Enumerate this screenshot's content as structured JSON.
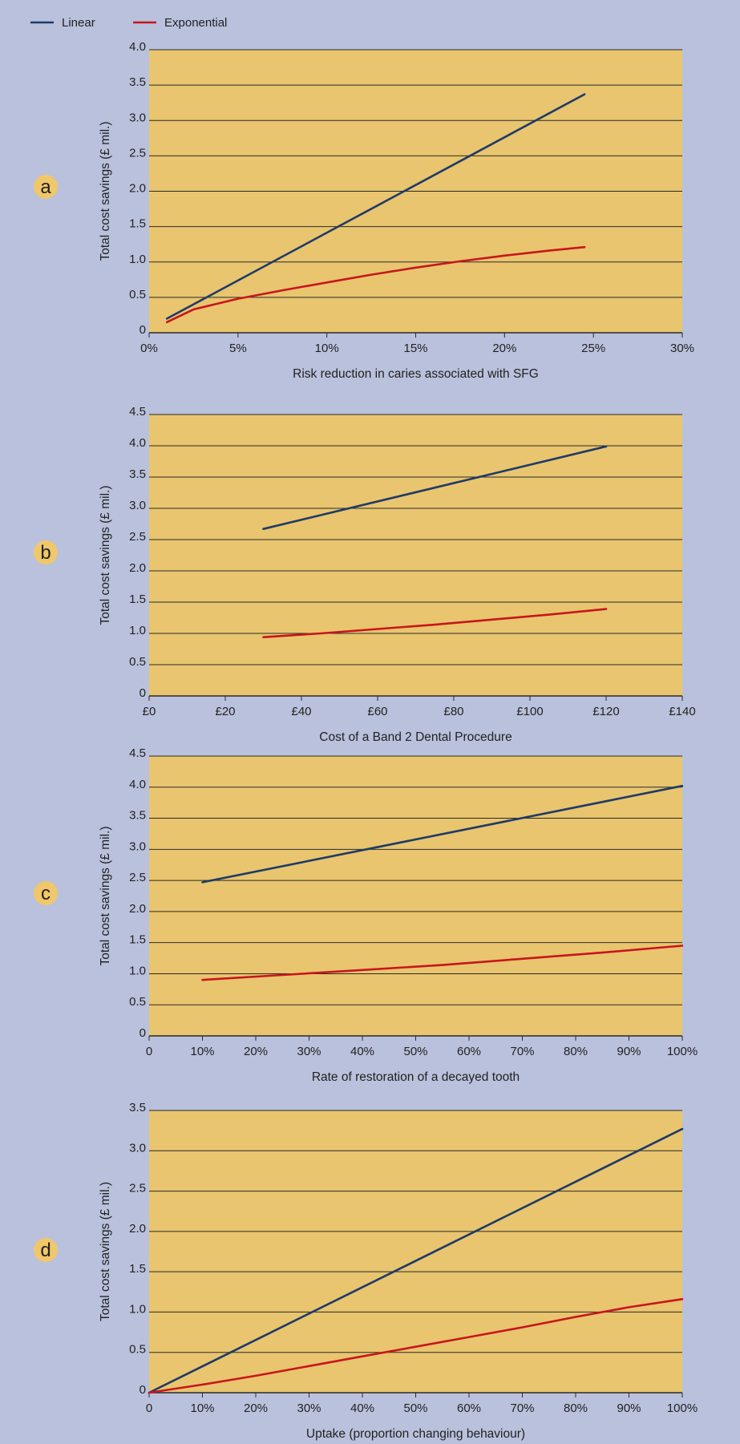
{
  "legend": {
    "placement": "top-left",
    "entries": [
      {
        "label": "Linear",
        "color": "#1f3a68"
      },
      {
        "label": "Exponential",
        "color": "#c8161d"
      }
    ]
  },
  "colors": {
    "background": "#b9c1dc",
    "plot_area": "#e8c56e",
    "grid": "#2a2a2a",
    "badge": "#f0c76a"
  },
  "chart_data": [
    {
      "type": "line",
      "panel": "a",
      "ylabel": "Total cost savings (£ mil.)",
      "xlabel": "Risk reduction in caries associated with SFG",
      "xlim": [
        0,
        30
      ],
      "ylim": [
        0,
        4.0
      ],
      "xticks": [
        0,
        5,
        10,
        15,
        20,
        25,
        30
      ],
      "xtick_labels": [
        "0%",
        "5%",
        "10%",
        "15%",
        "20%",
        "25%",
        "30%"
      ],
      "yticks": [
        0,
        0.5,
        1.0,
        1.5,
        2.0,
        2.5,
        3.0,
        3.5,
        4.0
      ],
      "ytick_labels": [
        "0",
        "0.5",
        "1.0",
        "1.5",
        "2.0",
        "2.5",
        "3.0",
        "3.5",
        "4.0"
      ],
      "grid": true,
      "series": [
        {
          "name": "Linear",
          "x": [
            1,
            24.5
          ],
          "y": [
            0.2,
            3.37
          ]
        },
        {
          "name": "Exponential",
          "x": [
            1,
            2.5,
            5,
            7.5,
            10,
            12.5,
            15,
            17.5,
            20,
            22.5,
            24.5
          ],
          "y": [
            0.15,
            0.33,
            0.48,
            0.6,
            0.71,
            0.82,
            0.92,
            1.01,
            1.09,
            1.16,
            1.21
          ]
        }
      ]
    },
    {
      "type": "line",
      "panel": "b",
      "ylabel": "Total cost savings (£ mil.)",
      "xlabel": "Cost of a Band 2 Dental Procedure",
      "xlim": [
        0,
        140
      ],
      "ylim": [
        0,
        4.5
      ],
      "xticks": [
        0,
        20,
        40,
        60,
        80,
        100,
        120,
        140
      ],
      "xtick_labels": [
        "£0",
        "£20",
        "£40",
        "£60",
        "£80",
        "£100",
        "£120",
        "£140"
      ],
      "yticks": [
        0,
        0.5,
        1.0,
        1.5,
        2.0,
        2.5,
        3.0,
        3.5,
        4.0,
        4.5
      ],
      "ytick_labels": [
        "0",
        "0.5",
        "1.0",
        "1.5",
        "2.0",
        "2.5",
        "3.0",
        "3.5",
        "4.0",
        "4.5"
      ],
      "grid": true,
      "series": [
        {
          "name": "Linear",
          "x": [
            30,
            120
          ],
          "y": [
            2.67,
            3.99
          ]
        },
        {
          "name": "Exponential",
          "x": [
            30,
            45,
            60,
            75,
            90,
            105,
            120
          ],
          "y": [
            0.94,
            1.0,
            1.07,
            1.14,
            1.22,
            1.3,
            1.39
          ]
        }
      ]
    },
    {
      "type": "line",
      "panel": "c",
      "ylabel": "Total cost savings (£ mil.)",
      "xlabel": "Rate of restoration of a decayed tooth",
      "xlim": [
        0,
        100
      ],
      "ylim": [
        0,
        4.5
      ],
      "xticks": [
        0,
        10,
        20,
        30,
        40,
        50,
        60,
        70,
        80,
        90,
        100
      ],
      "xtick_labels": [
        "0",
        "10%",
        "20%",
        "30%",
        "40%",
        "50%",
        "60%",
        "70%",
        "80%",
        "90%",
        "100%"
      ],
      "yticks": [
        0,
        0.5,
        1.0,
        1.5,
        2.0,
        2.5,
        3.0,
        3.5,
        4.0,
        4.5
      ],
      "ytick_labels": [
        "0",
        "0.5",
        "1.0",
        "1.5",
        "2.0",
        "2.5",
        "3.0",
        "3.5",
        "4.0",
        "4.5"
      ],
      "grid": true,
      "series": [
        {
          "name": "Linear",
          "x": [
            10,
            100
          ],
          "y": [
            2.47,
            4.02
          ]
        },
        {
          "name": "Exponential",
          "x": [
            10,
            25,
            40,
            55,
            70,
            85,
            100
          ],
          "y": [
            0.9,
            0.98,
            1.06,
            1.14,
            1.24,
            1.34,
            1.45
          ]
        }
      ]
    },
    {
      "type": "line",
      "panel": "d",
      "ylabel": "Total cost savings (£ mil.)",
      "xlabel": "Uptake (proportion changing behaviour)",
      "xlim": [
        0,
        100
      ],
      "ylim": [
        0,
        3.5
      ],
      "xticks": [
        0,
        10,
        20,
        30,
        40,
        50,
        60,
        70,
        80,
        90,
        100
      ],
      "xtick_labels": [
        "0",
        "10%",
        "20%",
        "30%",
        "40%",
        "50%",
        "60%",
        "70%",
        "80%",
        "90%",
        "100%"
      ],
      "yticks": [
        0,
        0.5,
        1.0,
        1.5,
        2.0,
        2.5,
        3.0,
        3.5
      ],
      "ytick_labels": [
        "0",
        "0.5",
        "1.0",
        "1.5",
        "2.0",
        "2.5",
        "3.0",
        "3.5"
      ],
      "grid": true,
      "series": [
        {
          "name": "Linear",
          "x": [
            0,
            100
          ],
          "y": [
            0,
            3.27
          ]
        },
        {
          "name": "Exponential",
          "x": [
            0,
            10,
            20,
            30,
            40,
            50,
            60,
            70,
            80,
            90,
            100
          ],
          "y": [
            0,
            0.1,
            0.21,
            0.33,
            0.45,
            0.57,
            0.69,
            0.81,
            0.94,
            1.06,
            1.16
          ]
        }
      ]
    }
  ]
}
